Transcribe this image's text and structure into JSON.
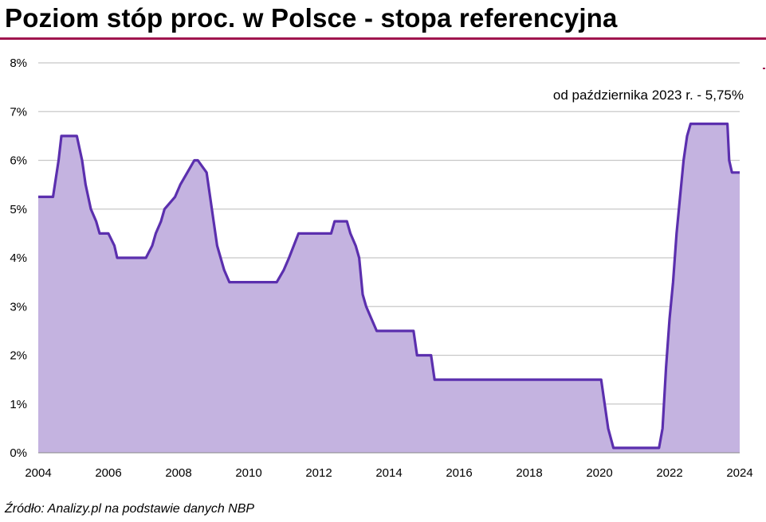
{
  "title": "Poziom stóp proc. w Polsce - stopa referencyjna",
  "source": "Źródło: Analizy.pl na podstawie danych NBP",
  "colors": {
    "title_rule": "#a0154f",
    "line": "#5b2fae",
    "fill": "#c4b3e0",
    "grid": "#c8c8c8"
  },
  "chart_data": {
    "type": "area",
    "title": "Poziom stóp proc. w Polsce - stopa referencyjna",
    "xlabel": "",
    "ylabel": "",
    "xlim": [
      2004,
      2024
    ],
    "ylim": [
      0,
      8
    ],
    "x_ticks": [
      "2004",
      "2006",
      "2008",
      "2010",
      "2012",
      "2014",
      "2016",
      "2018",
      "2020",
      "2022",
      "2024"
    ],
    "y_ticks": [
      "0%",
      "1%",
      "2%",
      "3%",
      "4%",
      "5%",
      "6%",
      "7%",
      "8%"
    ],
    "grid": true,
    "legend": "none",
    "annotation": "od października  2023 r. - 5,75%",
    "series": [
      {
        "x": [
          2004.0,
          2004.42,
          2004.58,
          2004.66,
          2005.1,
          2005.25,
          2005.35,
          2005.5,
          2005.65,
          2005.75,
          2006.0,
          2006.17,
          2006.25,
          2007.07,
          2007.25,
          2007.35,
          2007.5,
          2007.6,
          2007.9,
          2008.05,
          2008.25,
          2008.45,
          2008.55,
          2008.8,
          2008.9,
          2009.0,
          2009.1,
          2009.2,
          2009.3,
          2009.45,
          2010.0,
          2010.8,
          2011.0,
          2011.15,
          2011.42,
          2011.5,
          2012.35,
          2012.45,
          2012.8,
          2012.9,
          2013.05,
          2013.15,
          2013.25,
          2013.35,
          2013.5,
          2013.65,
          2014.7,
          2014.8,
          2015.2,
          2015.3,
          2020.05,
          2020.15,
          2020.25,
          2020.4,
          2021.7,
          2021.8,
          2021.9,
          2022.0,
          2022.1,
          2022.2,
          2022.3,
          2022.4,
          2022.5,
          2022.6,
          2022.75,
          2023.65,
          2023.7,
          2023.78,
          2024.0
        ],
        "y": [
          5.25,
          5.25,
          6.0,
          6.5,
          6.5,
          6.0,
          5.5,
          5.0,
          4.75,
          4.5,
          4.5,
          4.25,
          4.0,
          4.0,
          4.25,
          4.5,
          4.75,
          5.0,
          5.25,
          5.5,
          5.75,
          6.0,
          6.0,
          5.75,
          5.25,
          4.75,
          4.25,
          4.0,
          3.75,
          3.5,
          3.5,
          3.5,
          3.75,
          4.0,
          4.5,
          4.5,
          4.5,
          4.75,
          4.75,
          4.5,
          4.25,
          4.0,
          3.25,
          3.0,
          2.75,
          2.5,
          2.5,
          2.0,
          2.0,
          1.5,
          1.5,
          1.0,
          0.5,
          0.1,
          0.1,
          0.5,
          1.75,
          2.75,
          3.5,
          4.5,
          5.25,
          6.0,
          6.5,
          6.75,
          6.75,
          6.75,
          6.0,
          5.75,
          5.75
        ]
      }
    ]
  }
}
